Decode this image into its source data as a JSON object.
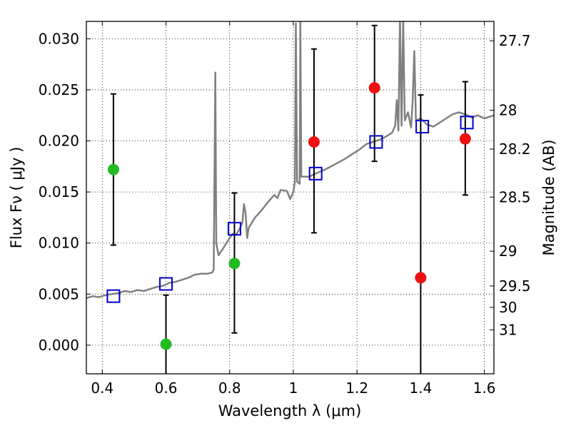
{
  "chart_data": {
    "type": "scatter",
    "title": "",
    "xlabel": "Wavelength  λ (μm)",
    "ylabel": "Flux  Fν  ( μJy )",
    "y2label": "Magnitude (AB)",
    "xlim": [
      0.35,
      1.63
    ],
    "ylim": [
      -0.0028,
      0.0317
    ],
    "grid": true,
    "x_ticks": [
      0.4,
      0.6,
      0.8,
      1.0,
      1.2,
      1.4,
      1.6
    ],
    "x_tick_labels": [
      "0.4",
      "0.6",
      "0.8",
      "1",
      "1.2",
      "1.4",
      "1.6"
    ],
    "y_ticks": [
      0.0,
      0.005,
      0.01,
      0.015,
      0.02,
      0.025,
      0.03
    ],
    "y_tick_labels": [
      "0.000",
      "0.005",
      "0.010",
      "0.015",
      "0.020",
      "0.025",
      "0.030"
    ],
    "y2_ticks": [
      {
        "label": "27.7",
        "flux": 0.0298
      },
      {
        "label": "28",
        "flux": 0.023
      },
      {
        "label": "28.2",
        "flux": 0.0192
      },
      {
        "label": "28.5",
        "flux": 0.0145
      },
      {
        "label": "29",
        "flux": 0.0092
      },
      {
        "label": "29.5",
        "flux": 0.0058
      },
      {
        "label": "30",
        "flux": 0.0037
      },
      {
        "label": "31",
        "flux": 0.0015
      }
    ],
    "series": [
      {
        "kind": "spectrum",
        "color": "#808080",
        "points": [
          [
            0.35,
            0.0046
          ],
          [
            0.37,
            0.0048
          ],
          [
            0.39,
            0.0047
          ],
          [
            0.41,
            0.0049
          ],
          [
            0.43,
            0.005
          ],
          [
            0.45,
            0.0051
          ],
          [
            0.47,
            0.0053
          ],
          [
            0.49,
            0.0052
          ],
          [
            0.51,
            0.0054
          ],
          [
            0.53,
            0.0053
          ],
          [
            0.55,
            0.0055
          ],
          [
            0.57,
            0.0057
          ],
          [
            0.59,
            0.0058
          ],
          [
            0.61,
            0.0061
          ],
          [
            0.63,
            0.0062
          ],
          [
            0.65,
            0.0064
          ],
          [
            0.67,
            0.0066
          ],
          [
            0.69,
            0.0069
          ],
          [
            0.71,
            0.007
          ],
          [
            0.73,
            0.007
          ],
          [
            0.745,
            0.0071
          ],
          [
            0.75,
            0.0074
          ],
          [
            0.755,
            0.0267
          ],
          [
            0.758,
            0.01
          ],
          [
            0.765,
            0.0088
          ],
          [
            0.78,
            0.0095
          ],
          [
            0.8,
            0.0105
          ],
          [
            0.81,
            0.0109
          ],
          [
            0.82,
            0.0108
          ],
          [
            0.83,
            0.0113
          ],
          [
            0.84,
            0.012
          ],
          [
            0.845,
            0.0138
          ],
          [
            0.85,
            0.013
          ],
          [
            0.855,
            0.0105
          ],
          [
            0.86,
            0.0115
          ],
          [
            0.88,
            0.0125
          ],
          [
            0.9,
            0.0132
          ],
          [
            0.92,
            0.014
          ],
          [
            0.94,
            0.0147
          ],
          [
            0.95,
            0.0144
          ],
          [
            0.96,
            0.0152
          ],
          [
            0.98,
            0.0151
          ],
          [
            0.99,
            0.0143
          ],
          [
            1.0,
            0.015
          ],
          [
            1.005,
            0.016
          ],
          [
            1.008,
            0.0315
          ],
          [
            1.012,
            0.016
          ],
          [
            1.02,
            0.0158
          ],
          [
            1.022,
            0.032
          ],
          [
            1.025,
            0.0165
          ],
          [
            1.05,
            0.0165
          ],
          [
            1.07,
            0.0168
          ],
          [
            1.1,
            0.0172
          ],
          [
            1.13,
            0.0177
          ],
          [
            1.16,
            0.0182
          ],
          [
            1.19,
            0.0188
          ],
          [
            1.21,
            0.0192
          ],
          [
            1.23,
            0.0197
          ],
          [
            1.25,
            0.0199
          ],
          [
            1.27,
            0.0201
          ],
          [
            1.29,
            0.0204
          ],
          [
            1.31,
            0.0208
          ],
          [
            1.32,
            0.0215
          ],
          [
            1.325,
            0.024
          ],
          [
            1.33,
            0.021
          ],
          [
            1.335,
            0.032
          ],
          [
            1.34,
            0.0215
          ],
          [
            1.345,
            0.032
          ],
          [
            1.35,
            0.022
          ],
          [
            1.36,
            0.0228
          ],
          [
            1.37,
            0.0213
          ],
          [
            1.375,
            0.024
          ],
          [
            1.38,
            0.0288
          ],
          [
            1.385,
            0.022
          ],
          [
            1.4,
            0.0222
          ],
          [
            1.42,
            0.0216
          ],
          [
            1.44,
            0.0214
          ],
          [
            1.46,
            0.0218
          ],
          [
            1.48,
            0.0222
          ],
          [
            1.5,
            0.0226
          ],
          [
            1.52,
            0.0228
          ],
          [
            1.54,
            0.0226
          ],
          [
            1.56,
            0.0223
          ],
          [
            1.58,
            0.0225
          ],
          [
            1.6,
            0.0222
          ],
          [
            1.62,
            0.0224
          ],
          [
            1.63,
            0.0225
          ]
        ]
      },
      {
        "kind": "model_squares",
        "color": "#0000cc",
        "points": [
          {
            "x": 0.435,
            "y": 0.0048
          },
          {
            "x": 0.6,
            "y": 0.006
          },
          {
            "x": 0.815,
            "y": 0.0114
          },
          {
            "x": 1.07,
            "y": 0.0168
          },
          {
            "x": 1.26,
            "y": 0.0199
          },
          {
            "x": 1.405,
            "y": 0.0214
          },
          {
            "x": 1.545,
            "y": 0.0218
          }
        ]
      },
      {
        "kind": "observed_detections",
        "color": "#22bb22",
        "points": [
          {
            "x": 0.435,
            "y": 0.0172,
            "low": 0.0098,
            "high": 0.0246
          },
          {
            "x": 0.6,
            "y": 0.0001,
            "low": -0.003,
            "high": 0.0049
          },
          {
            "x": 0.815,
            "y": 0.008,
            "low": 0.0012,
            "high": 0.0149
          }
        ]
      },
      {
        "kind": "observed_low_significance",
        "color": "#ee1111",
        "points": [
          {
            "x": 1.065,
            "y": 0.0199,
            "low": 0.011,
            "high": 0.029
          },
          {
            "x": 1.255,
            "y": 0.0252,
            "low": 0.018,
            "high": 0.0313
          },
          {
            "x": 1.4,
            "y": 0.0066,
            "low": -0.003,
            "high": 0.0245
          },
          {
            "x": 1.54,
            "y": 0.0202,
            "low": 0.0147,
            "high": 0.0258
          }
        ]
      }
    ]
  }
}
